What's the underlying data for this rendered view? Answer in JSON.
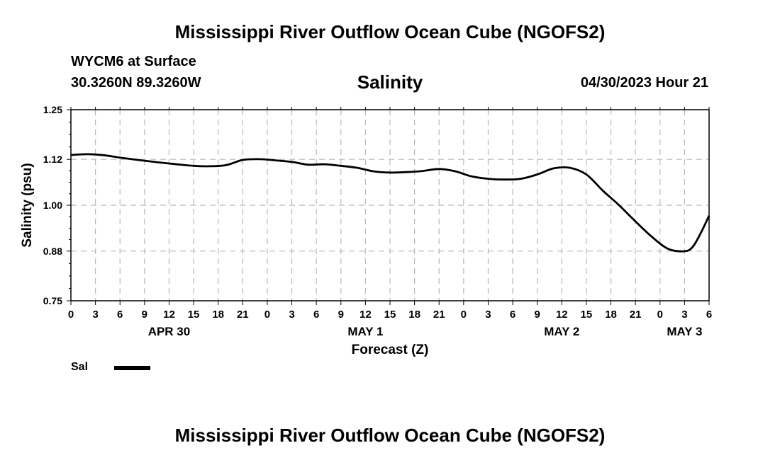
{
  "header": {
    "title": "Mississippi River Outflow Ocean Cube (NGOFS2)",
    "station": "WYCM6 at Surface",
    "coords": "30.3260N  89.3260W",
    "variable": "Salinity",
    "datetime": "04/30/2023 Hour 21"
  },
  "footer": {
    "title": "Mississippi River Outflow Ocean Cube (NGOFS2)"
  },
  "legend": {
    "label": "Sal",
    "color": "#000000"
  },
  "chart_data": {
    "type": "line",
    "title": "Salinity",
    "xlabel": "Forecast (Z)",
    "ylabel": "Salinity (psu)",
    "ylim": [
      0.75,
      1.25
    ],
    "yticks": [
      0.75,
      0.88,
      1.0,
      1.12,
      1.25
    ],
    "ytick_labels": [
      "0.75",
      "0.88",
      "1.00",
      "1.12",
      "1.25"
    ],
    "xlim_hours": [
      0,
      78
    ],
    "xtick_labels": [
      "0",
      "3",
      "6",
      "9",
      "12",
      "15",
      "18",
      "21",
      "0",
      "3",
      "6",
      "9",
      "12",
      "15",
      "18",
      "21",
      "0",
      "3",
      "6",
      "9",
      "12",
      "15",
      "18",
      "21",
      "0",
      "3",
      "6"
    ],
    "day_labels": [
      {
        "hour": 12,
        "label": "APR 30"
      },
      {
        "hour": 36,
        "label": "MAY 1"
      },
      {
        "hour": 60,
        "label": "MAY 2"
      },
      {
        "hour": 75,
        "label": "MAY 3"
      }
    ],
    "grid": true,
    "series": [
      {
        "name": "Sal",
        "color": "#000000",
        "x": [
          0,
          2,
          4,
          6,
          9,
          12,
          15,
          17,
          19,
          21,
          23,
          25,
          27,
          29,
          31,
          33,
          35,
          37,
          39,
          41,
          43,
          45,
          47,
          49,
          51,
          53,
          55,
          57,
          59,
          61,
          63,
          65,
          67,
          69,
          71,
          73,
          75,
          76,
          77,
          78
        ],
        "values": [
          1.1315,
          1.1336,
          1.1309,
          1.1247,
          1.1165,
          1.1093,
          1.1031,
          1.1021,
          1.1052,
          1.1185,
          1.1206,
          1.1175,
          1.1134,
          1.1062,
          1.1072,
          1.1031,
          1.0979,
          1.0887,
          1.0856,
          1.0867,
          1.0897,
          1.0949,
          1.0887,
          1.0753,
          1.0692,
          1.0672,
          1.0692,
          1.0805,
          1.0964,
          1.0979,
          1.0805,
          1.0384,
          1.0,
          0.9576,
          0.9176,
          0.8858,
          0.8796,
          0.8912,
          0.928,
          0.9727
        ]
      }
    ]
  }
}
